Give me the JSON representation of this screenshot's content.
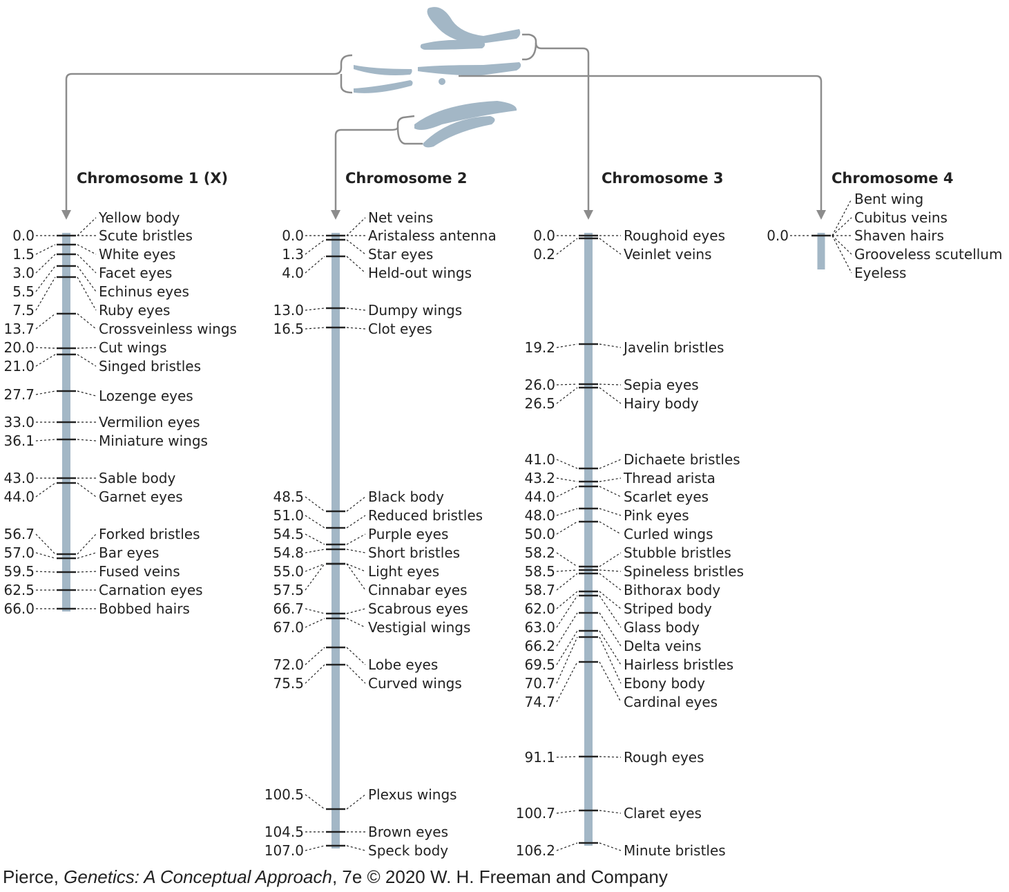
{
  "colors": {
    "chromosome": "#a3b7c6",
    "marker": "#222222",
    "connector": "#8c8c8c",
    "text": "#222222"
  },
  "credit": {
    "author": "Pierce, ",
    "book": "Genetics: A Conceptual Approach",
    "rest": ", 7e © 2020 W. H. Freeman and Company"
  },
  "chromosomes": [
    {
      "title": "Chromosome 1 (X)",
      "loci": [
        {
          "pos": "0.0",
          "genes": [
            "Yellow body",
            "Scute bristles"
          ]
        },
        {
          "pos": "1.5",
          "genes": [
            "White eyes"
          ]
        },
        {
          "pos": "3.0",
          "genes": [
            "Facet eyes"
          ]
        },
        {
          "pos": "5.5",
          "genes": [
            "Echinus eyes"
          ]
        },
        {
          "pos": "7.5",
          "genes": [
            "Ruby eyes"
          ]
        },
        {
          "pos": "13.7",
          "genes": [
            "Crossveinless wings"
          ]
        },
        {
          "pos": "20.0",
          "genes": [
            "Cut wings"
          ]
        },
        {
          "pos": "21.0",
          "genes": [
            "Singed bristles"
          ]
        },
        {
          "pos": "27.7",
          "genes": [
            "Lozenge eyes"
          ]
        },
        {
          "pos": "33.0",
          "genes": [
            "Vermilion eyes"
          ]
        },
        {
          "pos": "36.1",
          "genes": [
            "Miniature wings"
          ]
        },
        {
          "pos": "43.0",
          "genes": [
            "Sable body"
          ]
        },
        {
          "pos": "44.0",
          "genes": [
            "Garnet eyes"
          ]
        },
        {
          "pos": "56.7",
          "genes": [
            "Forked bristles"
          ]
        },
        {
          "pos": "57.0",
          "genes": [
            "Bar eyes"
          ]
        },
        {
          "pos": "59.5",
          "genes": [
            "Fused veins"
          ]
        },
        {
          "pos": "62.5",
          "genes": [
            "Carnation eyes"
          ]
        },
        {
          "pos": "66.0",
          "genes": [
            "Bobbed hairs"
          ]
        }
      ]
    },
    {
      "title": "Chromosome 2",
      "loci": [
        {
          "pos": "0.0",
          "genes": [
            "Net veins",
            "Aristaless antenna"
          ]
        },
        {
          "pos": "1.3",
          "genes": [
            "Star eyes"
          ]
        },
        {
          "pos": "4.0",
          "genes": [
            "Held-out wings"
          ]
        },
        {
          "pos": "13.0",
          "genes": [
            "Dumpy wings"
          ]
        },
        {
          "pos": "16.5",
          "genes": [
            "Clot eyes"
          ]
        },
        {
          "pos": "48.5",
          "genes": [
            "Black body"
          ]
        },
        {
          "pos": "51.0",
          "genes": [
            "Reduced bristles"
          ]
        },
        {
          "pos": "54.5",
          "genes": [
            "Purple eyes"
          ]
        },
        {
          "pos": "54.8",
          "genes": [
            "Short bristles"
          ]
        },
        {
          "pos": "55.0",
          "genes": [
            "Light eyes"
          ]
        },
        {
          "pos": "57.5",
          "genes": [
            "Cinnabar eyes"
          ]
        },
        {
          "pos": "66.7",
          "genes": [
            "Scabrous eyes"
          ]
        },
        {
          "pos": "67.0",
          "genes": [
            "Vestigial wings"
          ]
        },
        {
          "pos": "72.0",
          "genes": [
            "Lobe eyes"
          ]
        },
        {
          "pos": "75.5",
          "genes": [
            "Curved wings"
          ]
        },
        {
          "pos": "100.5",
          "genes": [
            "Plexus wings"
          ]
        },
        {
          "pos": "104.5",
          "genes": [
            "Brown eyes"
          ]
        },
        {
          "pos": "107.0",
          "genes": [
            "Speck body"
          ]
        }
      ]
    },
    {
      "title": "Chromosome 3",
      "loci": [
        {
          "pos": "0.0",
          "genes": [
            "Roughoid eyes"
          ]
        },
        {
          "pos": "0.2",
          "genes": [
            "Veinlet veins"
          ]
        },
        {
          "pos": "19.2",
          "genes": [
            "Javelin bristles"
          ]
        },
        {
          "pos": "26.0",
          "genes": [
            "Sepia eyes"
          ]
        },
        {
          "pos": "26.5",
          "genes": [
            "Hairy body"
          ]
        },
        {
          "pos": "41.0",
          "genes": [
            "Dichaete bristles"
          ]
        },
        {
          "pos": "43.2",
          "genes": [
            "Thread arista"
          ]
        },
        {
          "pos": "44.0",
          "genes": [
            "Scarlet eyes"
          ]
        },
        {
          "pos": "48.0",
          "genes": [
            "Pink eyes"
          ]
        },
        {
          "pos": "50.0",
          "genes": [
            "Curled wings"
          ]
        },
        {
          "pos": "58.2",
          "genes": [
            "Stubble bristles"
          ]
        },
        {
          "pos": "58.5",
          "genes": [
            "Spineless bristles"
          ]
        },
        {
          "pos": "58.7",
          "genes": [
            "Bithorax body"
          ]
        },
        {
          "pos": "62.0",
          "genes": [
            "Striped body"
          ]
        },
        {
          "pos": "63.0",
          "genes": [
            "Glass body"
          ]
        },
        {
          "pos": "66.2",
          "genes": [
            "Delta veins"
          ]
        },
        {
          "pos": "69.5",
          "genes": [
            "Hairless bristles"
          ]
        },
        {
          "pos": "70.7",
          "genes": [
            "Ebony body"
          ]
        },
        {
          "pos": "74.7",
          "genes": [
            "Cardinal eyes"
          ]
        },
        {
          "pos": "91.1",
          "genes": [
            "Rough eyes"
          ]
        },
        {
          "pos": "100.7",
          "genes": [
            "Claret eyes"
          ]
        },
        {
          "pos": "106.2",
          "genes": [
            "Minute bristles"
          ]
        }
      ]
    },
    {
      "title": "Chromosome 4",
      "loci": [
        {
          "pos": "0.0",
          "genes": [
            "Bent wing",
            "Cubitus veins",
            "Shaven hairs",
            "Grooveless scutellum",
            "Eyeless"
          ]
        }
      ]
    }
  ]
}
